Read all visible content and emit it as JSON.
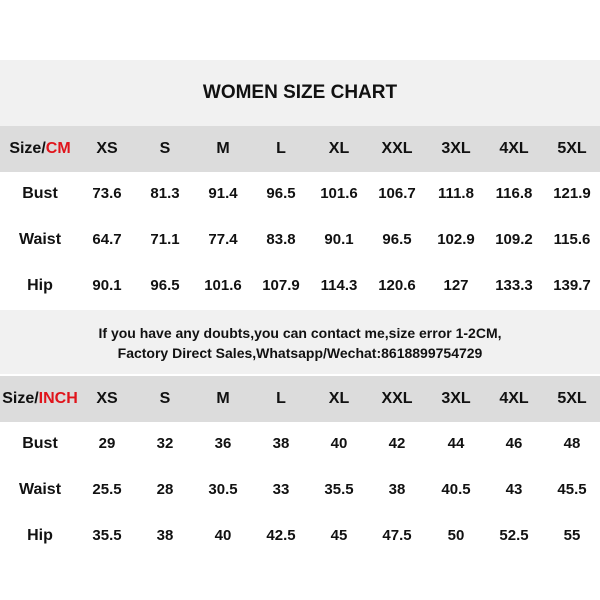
{
  "title": "WOMEN SIZE CHART",
  "sizes": [
    "XS",
    "S",
    "M",
    "L",
    "XL",
    "XXL",
    "3XL",
    "4XL",
    "5XL"
  ],
  "cm_table": {
    "size_label": "Size/",
    "unit": "CM",
    "rows": [
      {
        "label": "Bust",
        "values": [
          "73.6",
          "81.3",
          "91.4",
          "96.5",
          "101.6",
          "106.7",
          "111.8",
          "116.8",
          "121.9"
        ]
      },
      {
        "label": "Waist",
        "values": [
          "64.7",
          "71.1",
          "77.4",
          "83.8",
          "90.1",
          "96.5",
          "102.9",
          "109.2",
          "115.6"
        ]
      },
      {
        "label": "Hip",
        "values": [
          "90.1",
          "96.5",
          "101.6",
          "107.9",
          "114.3",
          "120.6",
          "127",
          "133.3",
          "139.7"
        ]
      }
    ]
  },
  "note": {
    "line1": "If you have any doubts,you can contact me,size error 1-2CM,",
    "line2": "Factory Direct Sales,Whatsapp/Wechat:8618899754729"
  },
  "inch_table": {
    "size_label": "Size/",
    "unit": "INCH",
    "rows": [
      {
        "label": "Bust",
        "values": [
          "29",
          "32",
          "36",
          "38",
          "40",
          "42",
          "44",
          "46",
          "48"
        ]
      },
      {
        "label": "Waist",
        "values": [
          "25.5",
          "28",
          "30.5",
          "33",
          "35.5",
          "38",
          "40.5",
          "43",
          "45.5"
        ]
      },
      {
        "label": "Hip",
        "values": [
          "35.5",
          "38",
          "40",
          "42.5",
          "45",
          "47.5",
          "50",
          "52.5",
          "55"
        ]
      }
    ]
  },
  "colors": {
    "unit_accent": "#e0141b",
    "header_bg": "#dcdcdc",
    "band_bg": "#f1f1f1"
  }
}
